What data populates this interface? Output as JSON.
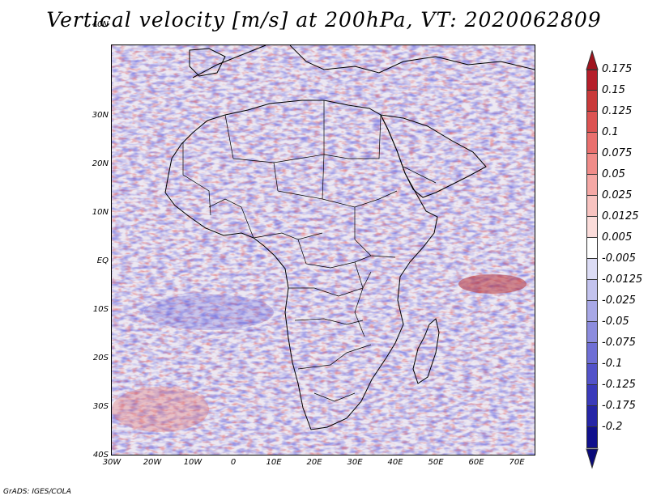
{
  "title": "Vertical velocity [m/s] at 200hPa, VT: 2020062809",
  "credit": "GrADS: IGES/COLA",
  "map": {
    "lat_labels": [
      "40N",
      "30N",
      "20N",
      "10N",
      "EQ",
      "10S",
      "20S",
      "30S",
      "40S"
    ],
    "lon_labels": [
      "30W",
      "20W",
      "10W",
      "0",
      "10E",
      "20E",
      "30E",
      "40E",
      "50E",
      "60E",
      "70E"
    ],
    "lat_range": [
      -40,
      44
    ],
    "lon_range": [
      -30,
      75
    ]
  },
  "colorbar": {
    "labels": [
      "0.175",
      "0.15",
      "0.125",
      "0.1",
      "0.075",
      "0.05",
      "0.025",
      "0.0125",
      "0.005",
      "-0.005",
      "-0.0125",
      "-0.025",
      "-0.05",
      "-0.075",
      "-0.1",
      "-0.125",
      "-0.175",
      "-0.2"
    ],
    "colors": [
      "#b51f2a",
      "#c93a3a",
      "#dc5352",
      "#e9706e",
      "#f08c89",
      "#f5a8a5",
      "#f8c3c0",
      "#fbdcda",
      "#ffffff",
      "#dcdcf5",
      "#c3c3ee",
      "#a8a8e6",
      "#8c8cde",
      "#6f6fd5",
      "#5353c9",
      "#3a3aba",
      "#2525a6",
      "#10108c"
    ],
    "top_arrow_color": "#a0141e",
    "bottom_arrow_color": "#0a0a7a"
  },
  "colors": {
    "land_outline": "#000000",
    "field_base": "#e9e6f3"
  }
}
